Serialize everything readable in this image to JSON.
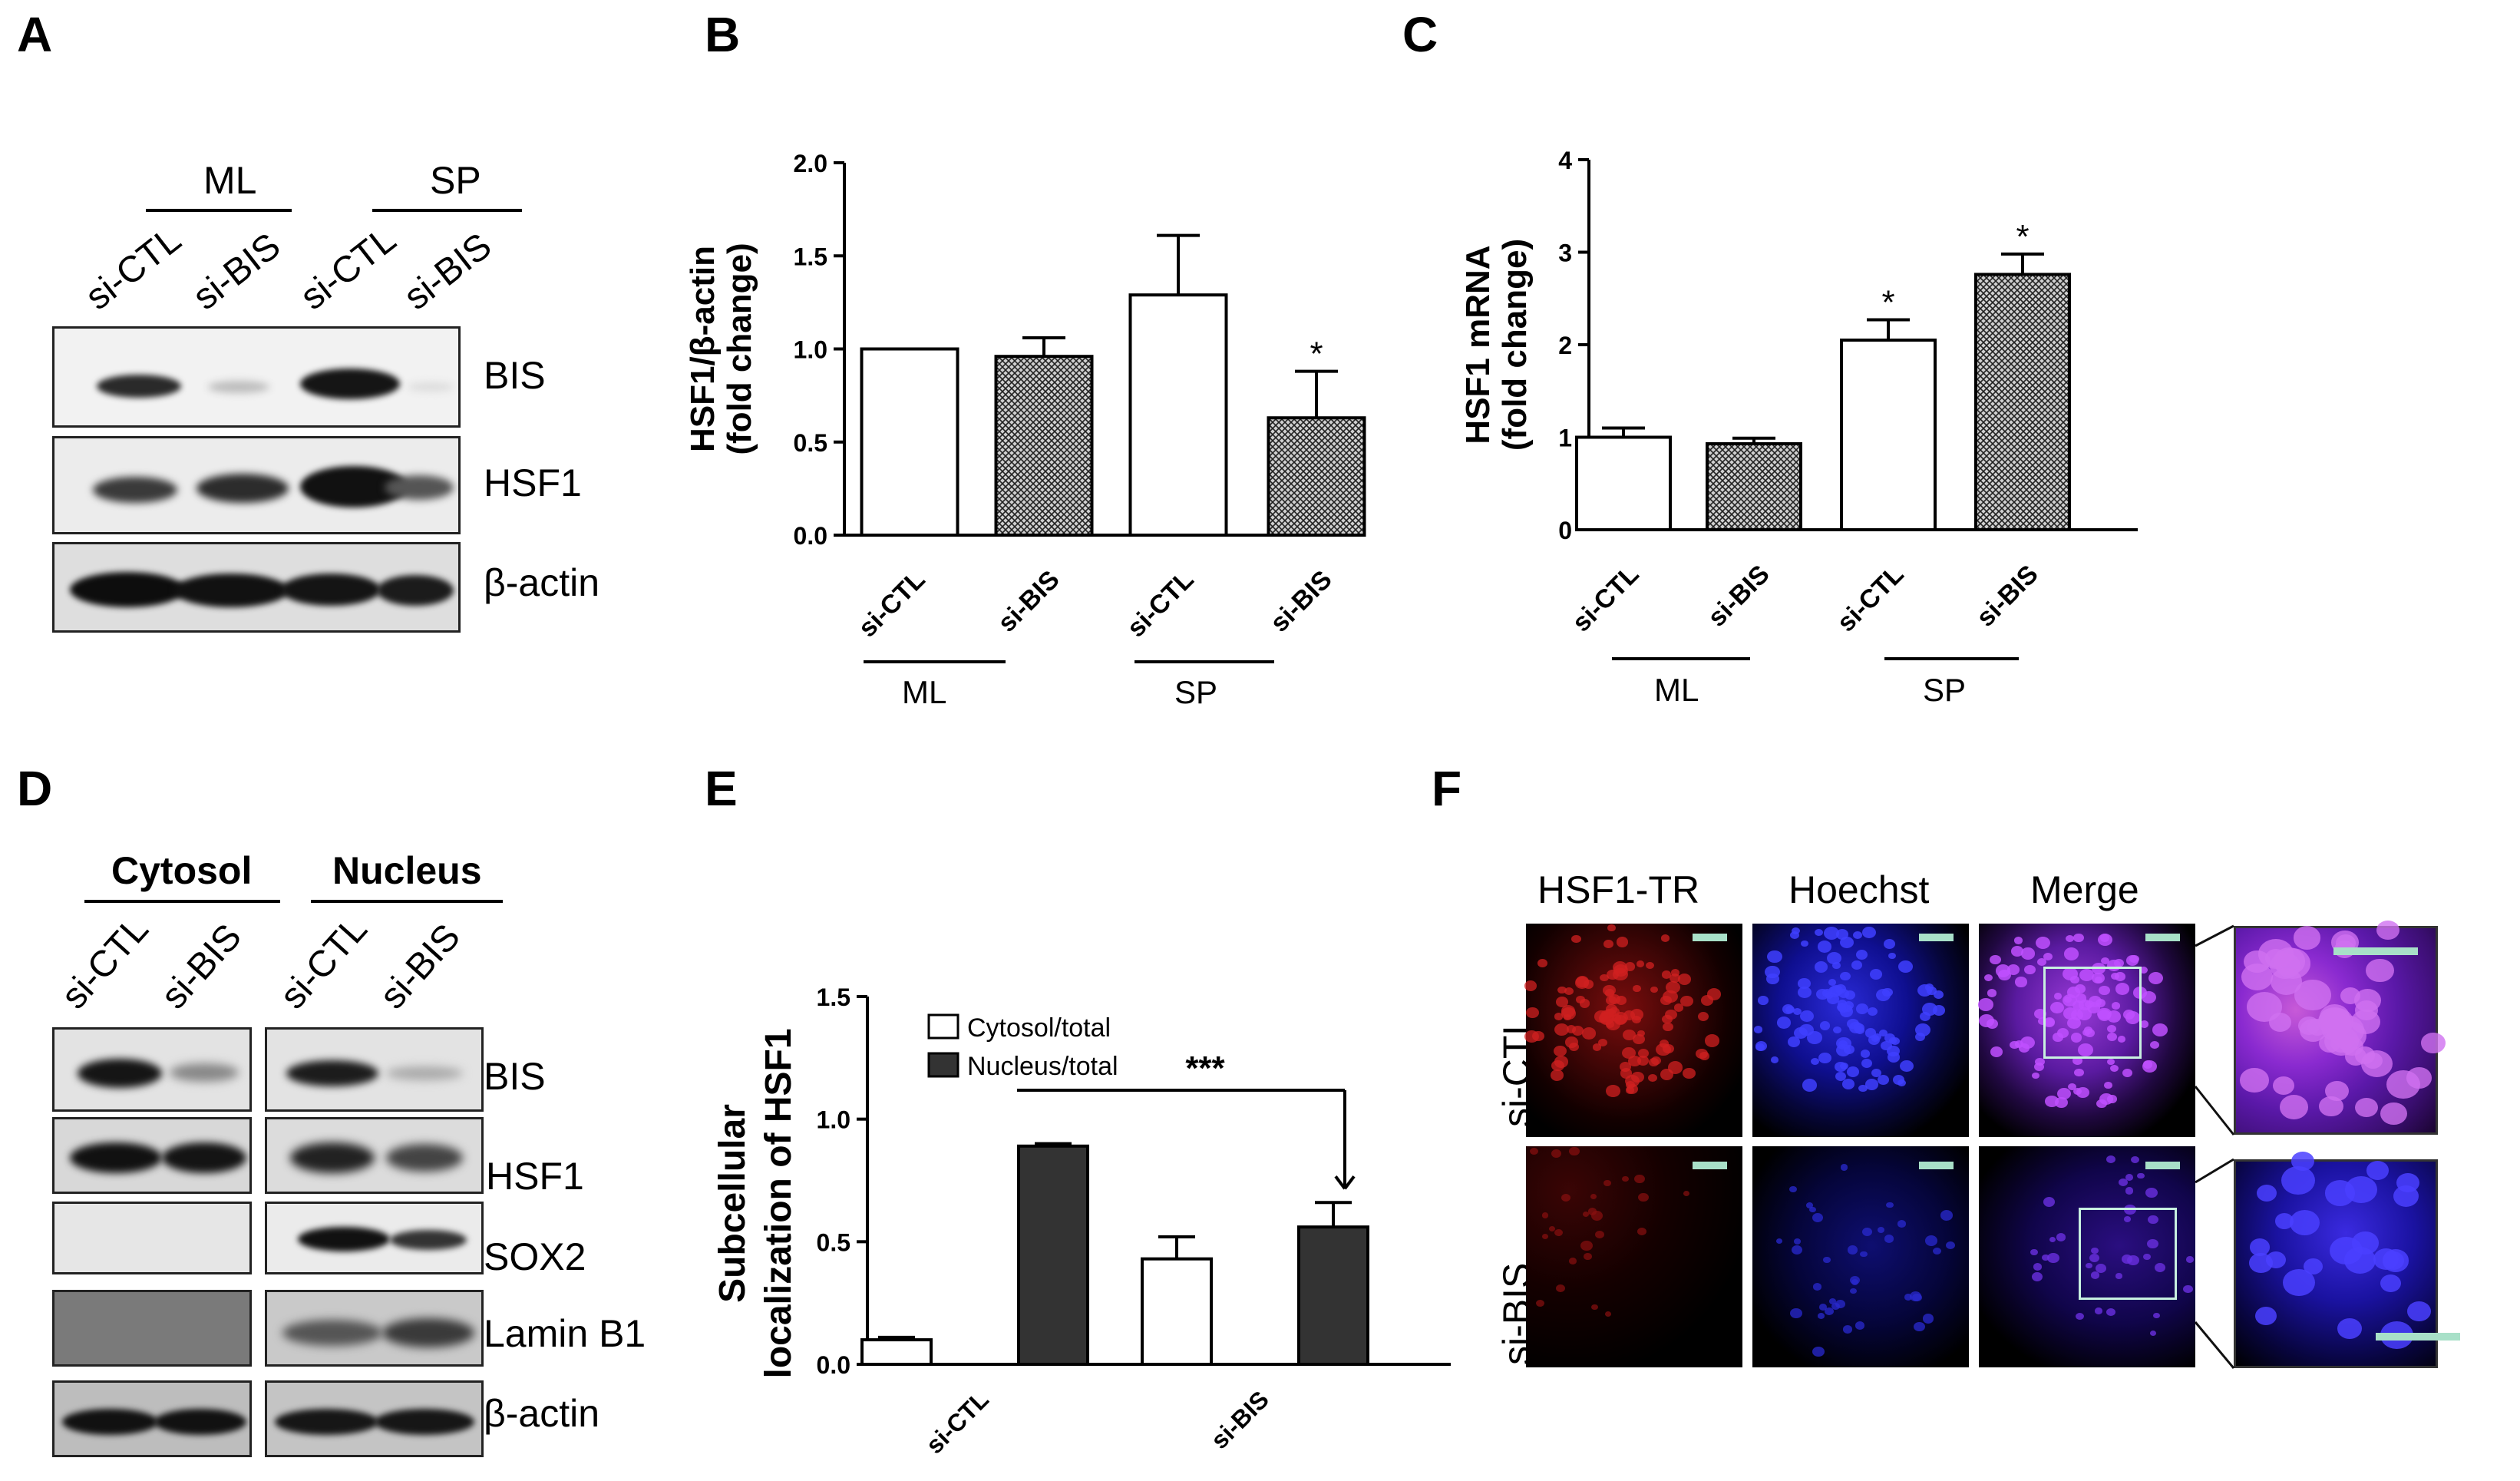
{
  "panels": {
    "A": {
      "letter": "A",
      "groups": [
        "ML",
        "SP"
      ],
      "lanes": [
        "si-CTL",
        "si-BIS",
        "si-CTL",
        "si-BIS"
      ],
      "rows": [
        "BIS",
        "HSF1",
        "β-actin"
      ]
    },
    "B": {
      "letter": "B",
      "groups": [
        "ML",
        "SP"
      ]
    },
    "C": {
      "letter": "C",
      "groups": [
        "ML",
        "SP"
      ]
    },
    "D": {
      "letter": "D",
      "groups": [
        "Cytosol",
        "Nucleus"
      ],
      "lanes": [
        "si-CTL",
        "si-BIS",
        "si-CTL",
        "si-BIS"
      ],
      "rows": [
        "BIS",
        "HSF1",
        "SOX2",
        "Lamin B1",
        "β-actin"
      ]
    },
    "E": {
      "letter": "E"
    },
    "F": {
      "letter": "F",
      "columns": [
        "HSF1-TR",
        "Hoechst",
        "Merge"
      ],
      "rows": [
        "si-CTL",
        "si-BIS"
      ]
    }
  },
  "chart_data": [
    {
      "id": "B",
      "type": "bar",
      "categories": [
        "si-CTL",
        "si-BIS",
        "si-CTL",
        "si-BIS"
      ],
      "values": [
        1.0,
        0.96,
        1.29,
        0.63
      ],
      "errors": [
        0,
        0.1,
        0.32,
        0.25
      ],
      "significance": [
        "",
        "",
        "",
        "*"
      ],
      "fills": [
        "white",
        "hatched",
        "white",
        "hatched"
      ],
      "ylabel_lines": [
        "HSF1/β-actin",
        "(fold change)"
      ],
      "yticks": [
        "0.0",
        "0.5",
        "1.0",
        "1.5",
        "2.0"
      ],
      "ylim": [
        0,
        2.0
      ]
    },
    {
      "id": "C",
      "type": "bar",
      "categories": [
        "si-CTL",
        "si-BIS",
        "si-CTL",
        "si-BIS"
      ],
      "values": [
        1.0,
        0.93,
        2.05,
        2.76
      ],
      "errors": [
        0.1,
        0.06,
        0.22,
        0.22
      ],
      "significance": [
        "",
        "",
        "*",
        "*"
      ],
      "fills": [
        "white",
        "hatched",
        "white",
        "hatched"
      ],
      "ylabel_lines": [
        "HSF1 mRNA",
        "(fold change)"
      ],
      "yticks": [
        "0",
        "1",
        "2",
        "3",
        "4"
      ],
      "ylim": [
        0,
        4
      ]
    },
    {
      "id": "E",
      "type": "bar",
      "categories": [
        "si-CTL",
        "si-BIS"
      ],
      "series": [
        {
          "name": "Cytosol/total",
          "values": [
            0.1,
            0.43
          ],
          "errors": [
            0.01,
            0.09
          ],
          "color": "#ffffff"
        },
        {
          "name": "Nucleus/total",
          "values": [
            0.89,
            0.56
          ],
          "errors": [
            0.01,
            0.1
          ],
          "color": "#333333"
        }
      ],
      "significance": "***",
      "ylabel_lines": [
        "Subcellular",
        "localization of HSF1"
      ],
      "yticks": [
        "0.0",
        "0.5",
        "1.0",
        "1.5"
      ],
      "ylim": [
        0,
        1.5
      ],
      "legend": "top-left"
    }
  ]
}
